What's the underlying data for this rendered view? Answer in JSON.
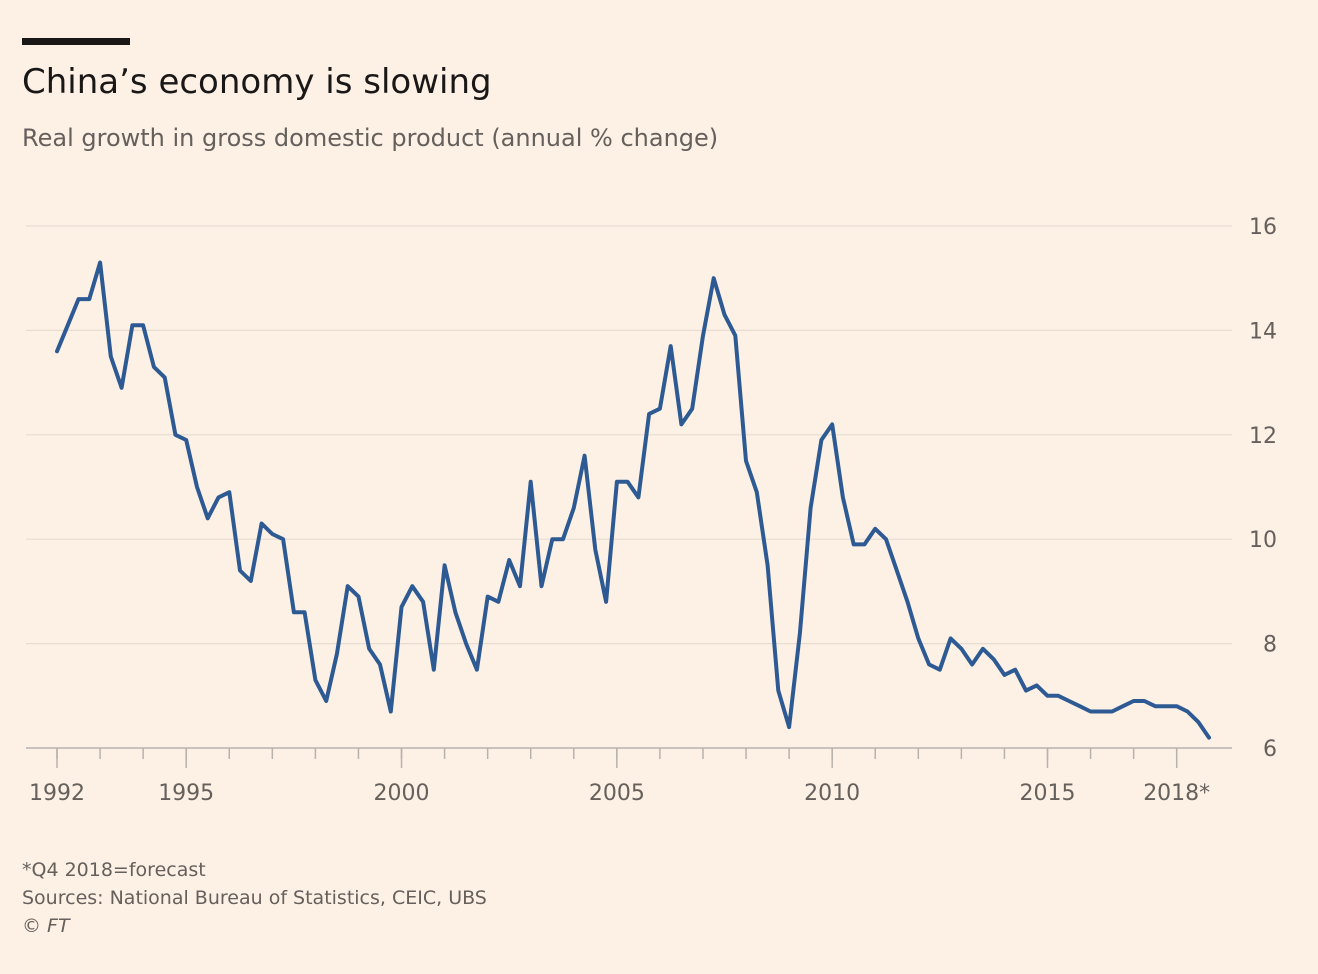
{
  "header": {
    "title": "China’s economy is slowing",
    "subtitle": "Real growth in gross domestic product (annual % change)"
  },
  "footer": {
    "note": "*Q4 2018=forecast",
    "sources": "Sources: National Bureau of Statistics, CEIC, UBS",
    "credit": "© FT"
  },
  "colors": {
    "background": "#fdf1e6",
    "line": "#2e5a94",
    "grid": "#e7dcd2",
    "axis": "#b8b2ad",
    "text": "#66605c"
  },
  "chart_data": {
    "type": "line",
    "title": "China’s economy is slowing",
    "subtitle": "Real growth in gross domestic product (annual % change)",
    "xlabel": "",
    "ylabel": "",
    "ylim": [
      6,
      16
    ],
    "xlim": [
      1992.0,
      2018.75
    ],
    "y_ticks": [
      {
        "value": 6,
        "label": "6"
      },
      {
        "value": 8,
        "label": "8"
      },
      {
        "value": 10,
        "label": "10"
      },
      {
        "value": 12,
        "label": "12"
      },
      {
        "value": 14,
        "label": "14"
      },
      {
        "value": 16,
        "label": "16"
      }
    ],
    "x_tick_labels": [
      {
        "value": 1992,
        "label": "1992"
      },
      {
        "value": 1995,
        "label": "1995"
      },
      {
        "value": 2000,
        "label": "2000"
      },
      {
        "value": 2005,
        "label": "2005"
      },
      {
        "value": 2010,
        "label": "2010"
      },
      {
        "value": 2015,
        "label": "2015"
      },
      {
        "value": 2018,
        "label": "2018*"
      }
    ],
    "x_minor_ticks_every_year": true,
    "grid": "horizontal",
    "legend": "none",
    "series": [
      {
        "name": "",
        "frequency": "quarterly",
        "start": "1992-Q1",
        "values": [
          13.6,
          14.1,
          14.6,
          14.6,
          15.3,
          13.5,
          12.9,
          14.1,
          14.1,
          13.3,
          13.1,
          12.0,
          11.9,
          11.0,
          10.4,
          10.8,
          10.9,
          9.4,
          9.2,
          10.3,
          10.1,
          10.0,
          8.6,
          8.6,
          7.3,
          6.9,
          7.8,
          9.1,
          8.9,
          7.9,
          7.6,
          6.7,
          8.7,
          9.1,
          8.8,
          7.5,
          9.5,
          8.6,
          8.0,
          7.5,
          8.9,
          8.8,
          9.6,
          9.1,
          11.1,
          9.1,
          10.0,
          10.0,
          10.6,
          11.6,
          9.8,
          8.8,
          11.1,
          11.1,
          10.8,
          12.4,
          12.5,
          13.7,
          12.2,
          12.5,
          13.9,
          15.0,
          14.3,
          13.9,
          11.5,
          10.9,
          9.5,
          7.1,
          6.4,
          8.2,
          10.6,
          11.9,
          12.2,
          10.8,
          9.9,
          9.9,
          10.2,
          10.0,
          9.4,
          8.8,
          8.1,
          7.6,
          7.5,
          8.1,
          7.9,
          7.6,
          7.9,
          7.7,
          7.4,
          7.5,
          7.1,
          7.2,
          7.0,
          7.0,
          6.9,
          6.8,
          6.7,
          6.7,
          6.7,
          6.8,
          6.9,
          6.9,
          6.8,
          6.8,
          6.8,
          6.7,
          6.5,
          6.2
        ]
      }
    ]
  }
}
